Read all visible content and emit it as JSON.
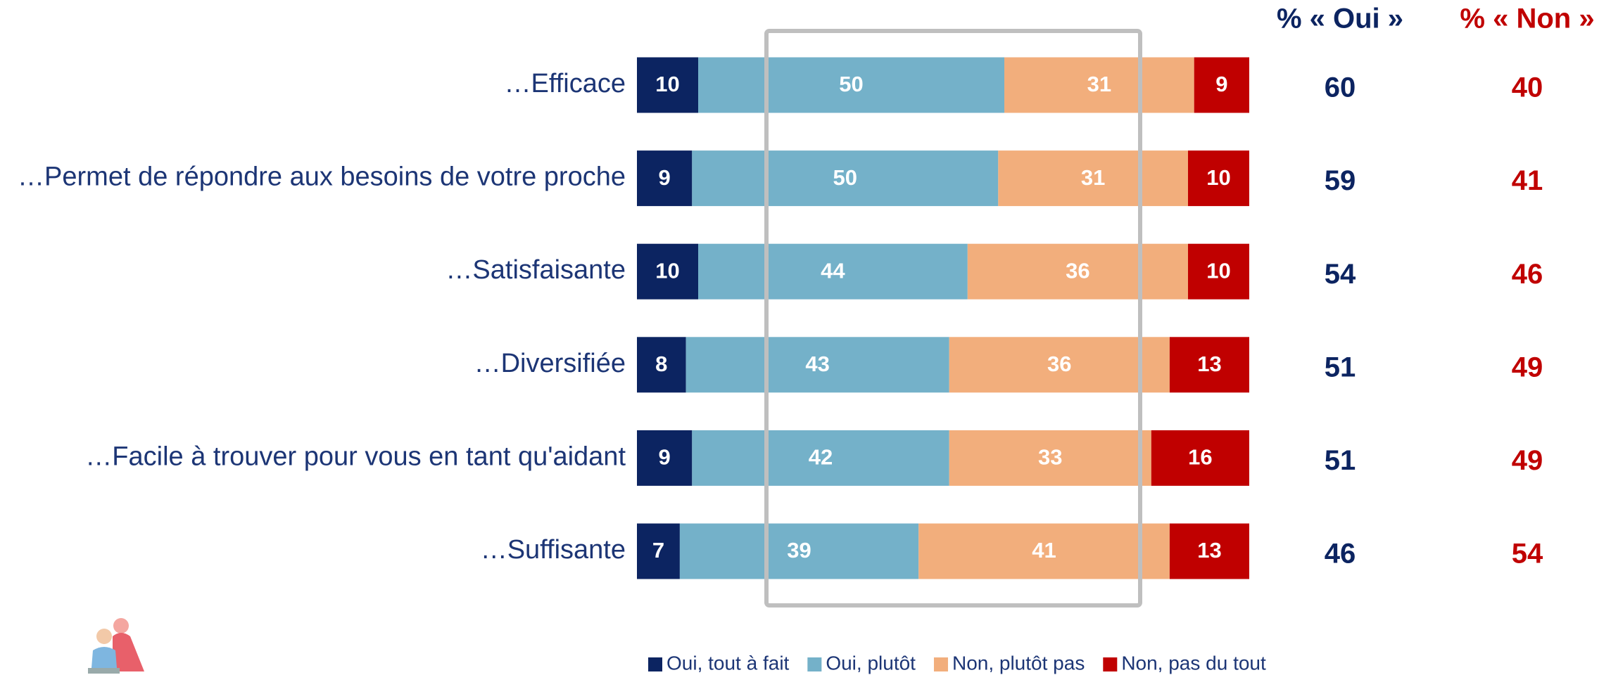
{
  "chart_data": {
    "type": "stacked-bar",
    "categories": [
      "…Efficace",
      "…Permet de répondre aux besoins de votre proche",
      "…Satisfaisante",
      "…Diversifiée",
      "…Facile à trouver pour vous en tant qu'aidant",
      "…Suffisante"
    ],
    "series": [
      {
        "name": "Oui, tout à fait",
        "color": "#0c2461",
        "values": [
          10,
          9,
          10,
          8,
          9,
          7
        ]
      },
      {
        "name": "Oui, plutôt",
        "color": "#74b1c9",
        "values": [
          50,
          50,
          44,
          43,
          42,
          39
        ]
      },
      {
        "name": "Non, plutôt pas",
        "color": "#f2ae7c",
        "values": [
          31,
          31,
          36,
          36,
          33,
          41
        ]
      },
      {
        "name": "Non, pas du tout",
        "color": "#c00000",
        "values": [
          9,
          10,
          10,
          13,
          16,
          13
        ]
      }
    ],
    "columns": [
      {
        "name": "% « Oui »",
        "color": "#0c2461",
        "values": [
          60,
          59,
          54,
          51,
          51,
          46
        ]
      },
      {
        "name": "% « Non »",
        "color": "#c00000",
        "values": [
          40,
          41,
          46,
          49,
          49,
          54
        ]
      }
    ],
    "legend": "bottom"
  }
}
